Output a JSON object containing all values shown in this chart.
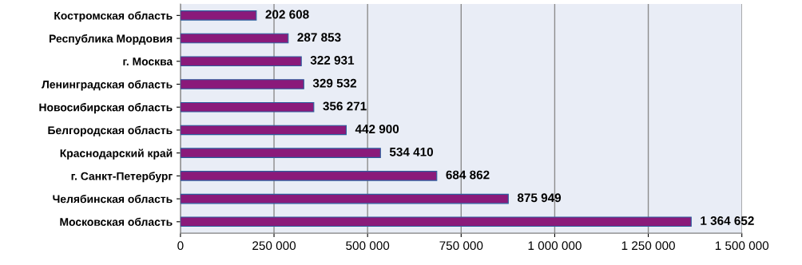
{
  "chart_data": {
    "type": "bar",
    "orientation": "horizontal",
    "categories": [
      "Костромская область",
      "Республика Мордовия",
      "г. Москва",
      "Ленинградская область",
      "Новосибирская область",
      "Белгородская область",
      "Краснодарский край",
      "г. Санкт-Петербург",
      "Челябинская область",
      "Московская область"
    ],
    "values": [
      202608,
      287853,
      322931,
      329532,
      356271,
      442900,
      534410,
      684862,
      875949,
      1364652
    ],
    "value_labels": [
      "202 608",
      "287 853",
      "322 931",
      "329 532",
      "356 271",
      "442 900",
      "534 410",
      "684 862",
      "875 949",
      "1 364 652"
    ],
    "color": "#8a1a7a",
    "xlim": [
      0,
      1500000
    ],
    "xticks": [
      0,
      {
        "value": 250000,
        "label": "250 000"
      },
      {
        "value": 500000,
        "label": "500 000"
      },
      {
        "value": 750000,
        "label": "750 000"
      },
      {
        "value": 1000000,
        "label": "1 000 000"
      },
      {
        "value": 1250000,
        "label": "1 250 000"
      },
      {
        "value": 1500000,
        "label": "1 500 000"
      }
    ],
    "grid": "x",
    "legend": false
  }
}
